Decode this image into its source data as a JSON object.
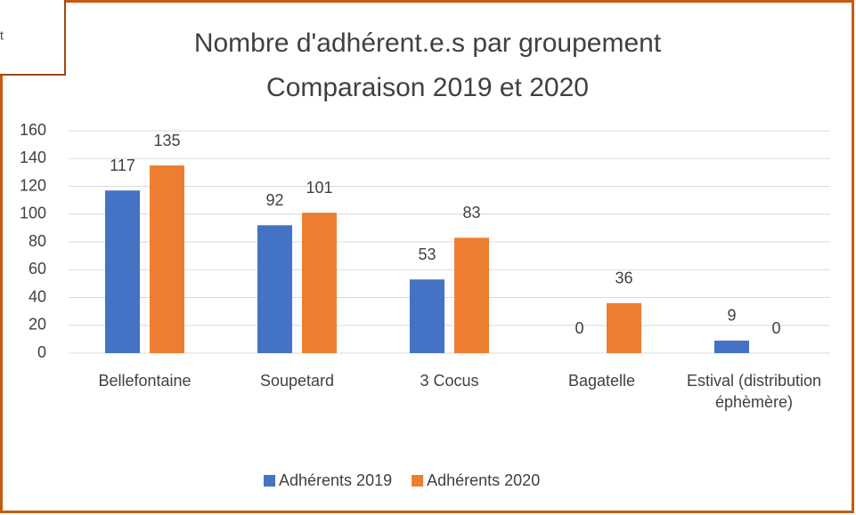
{
  "overlay_note": "t",
  "chart_data": {
    "type": "bar",
    "title": [
      "Nombre d'adhérent.e.s par groupement",
      "Comparaison 2019 et 2020"
    ],
    "categories": [
      "Bellefontaine",
      "Soupetard",
      "3 Cocus",
      "Bagatelle",
      "Estival (distribution éphèmère)"
    ],
    "series": [
      {
        "name": "Adhérents 2019",
        "color": "#4472c4",
        "values": [
          117,
          92,
          53,
          0,
          9
        ]
      },
      {
        "name": "Adhérents 2020",
        "color": "#ed7d31",
        "values": [
          135,
          101,
          83,
          36,
          0
        ]
      }
    ],
    "ylim": [
      0,
      160
    ],
    "yticks": [
      0,
      20,
      40,
      60,
      80,
      100,
      120,
      140,
      160
    ],
    "grid": true,
    "legend": "bottom"
  }
}
